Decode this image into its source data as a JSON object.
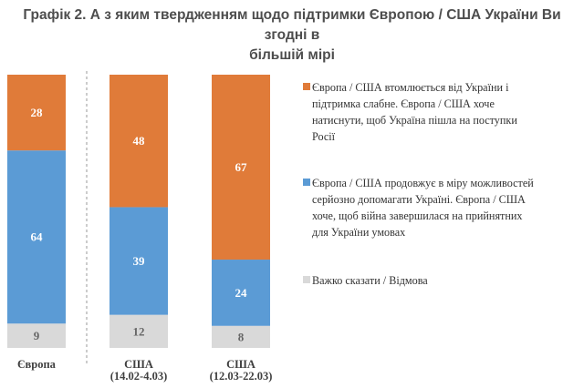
{
  "title_line1": "Графік 2. А з яким твердженням щодо підтримки Європою / США України Ви згодні в",
  "title_line2": "більшій мірі",
  "colors": {
    "orange": "#E07B39",
    "blue": "#5B9BD5",
    "gray": "#D9D9D9",
    "value_light": "#ffffff",
    "value_dark": "#666666"
  },
  "chart_data": {
    "type": "bar",
    "stacked": true,
    "categories": [
      [
        "Європа"
      ],
      [
        "США",
        "(14.02-4.03)"
      ],
      [
        "США",
        "(12.03-22.03)"
      ]
    ],
    "series": [
      {
        "name": "Європа / США втомлюється від України і підтримка слабне. Європа / США хоче натиснути, щоб Україна пішла на поступки Росії",
        "legend_lines": [
          "Європа / США втомлюється від України і",
          "підтримка слабне. Європа / США хоче",
          "натиснути, щоб Україна пішла на поступки",
          "Росії"
        ],
        "color": "#E07B39",
        "values": [
          28,
          48,
          67
        ]
      },
      {
        "name": "Європа / США продовжує в міру можливостей серйозно допомагати Україні. Європа / США хоче, щоб війна завершилася на прийнятних для України умовах",
        "legend_lines": [
          "Європа / США продовжує в міру можливостей",
          "серйозно допомагати Україні. Європа / США",
          "хоче, щоб війна завершилася на прийнятних",
          "для України умовах"
        ],
        "color": "#5B9BD5",
        "values": [
          64,
          39,
          24
        ]
      },
      {
        "name": "Важко сказати / Відмова",
        "legend_lines": [
          "Важко сказати / Відмова"
        ],
        "color": "#D9D9D9",
        "values": [
          9,
          12,
          8
        ]
      }
    ],
    "ylim": [
      0,
      100
    ],
    "grid": false,
    "legend_position": "right",
    "separator_between": [
      0,
      1
    ]
  }
}
